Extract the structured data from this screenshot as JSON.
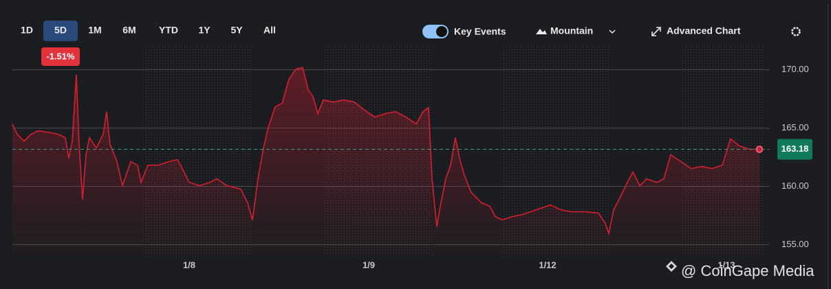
{
  "toolbar": {
    "ranges": [
      "1D",
      "5D",
      "1M",
      "6M",
      "YTD",
      "1Y",
      "5Y",
      "All"
    ],
    "selected_range": 1,
    "change_label": "-1.51%",
    "key_events": "Key Events",
    "chart_style": "Mountain",
    "advanced": "Advanced Chart"
  },
  "watermark": "@ CoinGape Media",
  "chart_data": {
    "type": "area",
    "color": "#d81e2e",
    "grid": true,
    "x": [
      0,
      7,
      17,
      27,
      37,
      52,
      67,
      77,
      82,
      87,
      93,
      97,
      102,
      107,
      112,
      122,
      132,
      137,
      142,
      152,
      160,
      172,
      182,
      187,
      197,
      212,
      227,
      240,
      247,
      257,
      272,
      287,
      297,
      312,
      332,
      342,
      349,
      357,
      365,
      372,
      382,
      392,
      402,
      412,
      422,
      430,
      437,
      444,
      452,
      467,
      482,
      497,
      512,
      527,
      542,
      557,
      572,
      587,
      597,
      605,
      610,
      617,
      622,
      630,
      637,
      644,
      650,
      657,
      667,
      682,
      694,
      702,
      712,
      727,
      742,
      762,
      782,
      797,
      812,
      832,
      852,
      862,
      867,
      874,
      882,
      894,
      902,
      912,
      922,
      937,
      947,
      957,
      972,
      987,
      1002,
      1017,
      1032,
      1044,
      1057,
      1072,
      1086
    ],
    "values": [
      165.35,
      164.47,
      163.88,
      164.47,
      164.76,
      164.65,
      164.47,
      164.18,
      162.41,
      163.88,
      169.59,
      163.59,
      158.88,
      162.71,
      164.18,
      163.29,
      164.47,
      166.41,
      163.59,
      162.12,
      160.06,
      162.12,
      161.82,
      160.35,
      161.82,
      161.82,
      162.12,
      162.29,
      161.53,
      160.35,
      160.06,
      160.35,
      160.65,
      160.06,
      159.76,
      158.59,
      157.12,
      160.65,
      163.29,
      165.06,
      166.82,
      167.12,
      169.18,
      170.06,
      170.18,
      168.29,
      167.71,
      166.24,
      167.41,
      167.24,
      167.41,
      167.24,
      166.53,
      165.94,
      166.24,
      166.41,
      165.94,
      165.35,
      166.41,
      166.76,
      160.65,
      156.53,
      158.29,
      160.65,
      161.82,
      164.18,
      162.41,
      160.94,
      159.47,
      158.59,
      158.29,
      157.41,
      157.12,
      157.41,
      157.59,
      158.0,
      158.41,
      158.0,
      157.82,
      157.82,
      157.71,
      156.82,
      155.94,
      158.0,
      158.88,
      160.35,
      161.24,
      160.06,
      160.65,
      160.35,
      160.65,
      162.71,
      162.12,
      161.53,
      161.71,
      161.53,
      161.82,
      164.06,
      163.47,
      163.18,
      163.18
    ],
    "xlim": [
      0,
      1092
    ],
    "xticks": [
      {
        "value": 257,
        "label": "1/8"
      },
      {
        "value": 518,
        "label": "1/9"
      },
      {
        "value": 778,
        "label": "1/12"
      },
      {
        "value": 1038,
        "label": "1/13"
      }
    ],
    "ylim": [
      154.2,
      172.1
    ],
    "yticks": [
      {
        "value": 155,
        "label": "155.00"
      },
      {
        "value": 160,
        "label": "160.00"
      },
      {
        "value": 165,
        "label": "165.00"
      },
      {
        "value": 170,
        "label": "170.00"
      }
    ],
    "current_price": 163.18
  }
}
